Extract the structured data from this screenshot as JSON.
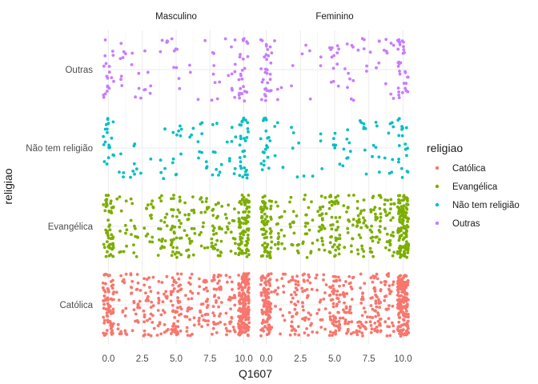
{
  "chart_data": {
    "type": "scatter",
    "jitter": true,
    "xlabel": "Q1607",
    "ylabel": "religiao",
    "xlim": [
      -0.5,
      10.5
    ],
    "x_ticks": [
      0,
      2.5,
      5,
      7.5,
      10
    ],
    "x_tick_labels": [
      "0.0",
      "2.5",
      "5.0",
      "7.5",
      "10.0"
    ],
    "facets": [
      "Masculino",
      "Feminino"
    ],
    "categories": [
      "Católica",
      "Evangélica",
      "Não tem religião",
      "Outras"
    ],
    "legend": {
      "title": "religiao",
      "position": "right",
      "entries": [
        "Católica",
        "Evangélica",
        "Não tem religião",
        "Outras"
      ]
    },
    "colors": {
      "Católica": "#F8766D",
      "Evangélica": "#7CAE00",
      "Não tem religião": "#00BFC4",
      "Outras": "#C77CFF"
    },
    "grid": true,
    "point_counts": {
      "Masculino": {
        "Católica": 520,
        "Evangélica": 330,
        "Não tem religião": 110,
        "Outras": 100
      },
      "Feminino": {
        "Católica": 580,
        "Evangélica": 420,
        "Não tem religião": 90,
        "Outras": 120
      }
    },
    "x_weights": {
      "Católica": [
        16,
        4,
        5,
        6,
        5,
        11,
        6,
        6,
        8,
        6,
        27
      ],
      "Evangélica": [
        15,
        3,
        4,
        4,
        4,
        10,
        5,
        5,
        7,
        5,
        22
      ],
      "Não tem religião": [
        12,
        2,
        2,
        2,
        2,
        6,
        3,
        3,
        4,
        3,
        14
      ],
      "Outras": [
        14,
        3,
        3,
        3,
        3,
        7,
        3,
        3,
        4,
        3,
        14
      ]
    }
  }
}
